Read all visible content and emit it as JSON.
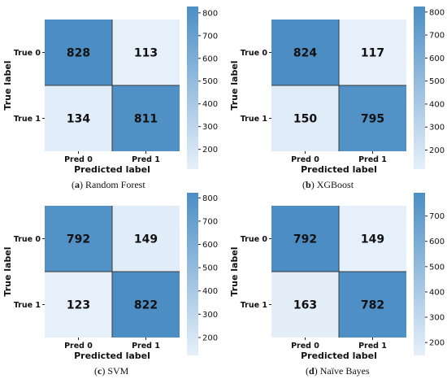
{
  "figure": {
    "panel_captions": [
      {
        "letter": "a",
        "text": "Random Forest"
      },
      {
        "letter": "b",
        "text": "XGBoost"
      },
      {
        "letter": "c",
        "text": "SVM"
      },
      {
        "letter": "d",
        "text": "Naïve Bayes"
      }
    ]
  },
  "colors": {
    "low": "#e6f0fa",
    "high": "#4c8ec4",
    "grid_line": "#3a3a3a"
  },
  "chart_data": [
    {
      "type": "heatmap",
      "title": "",
      "xlabel": "Predicted label",
      "ylabel": "True label",
      "x_categories": [
        "Pred 0",
        "Pred 1"
      ],
      "y_categories": [
        "True 0",
        "True 1"
      ],
      "values": [
        [
          828,
          113
        ],
        [
          134,
          811
        ]
      ],
      "colorbar": {
        "min": 113,
        "max": 828,
        "ticks": [
          200,
          300,
          400,
          500,
          600,
          700,
          800
        ]
      }
    },
    {
      "type": "heatmap",
      "title": "",
      "xlabel": "Predicted label",
      "ylabel": "True label",
      "x_categories": [
        "Pred 0",
        "Pred 1"
      ],
      "y_categories": [
        "True 0",
        "True 1"
      ],
      "values": [
        [
          824,
          117
        ],
        [
          150,
          795
        ]
      ],
      "colorbar": {
        "min": 117,
        "max": 824,
        "ticks": [
          200,
          300,
          400,
          500,
          600,
          700,
          800
        ]
      }
    },
    {
      "type": "heatmap",
      "title": "",
      "xlabel": "Predicted label",
      "ylabel": "True label",
      "x_categories": [
        "Pred 0",
        "Pred 1"
      ],
      "y_categories": [
        "True 0",
        "True 1"
      ],
      "values": [
        [
          792,
          149
        ],
        [
          123,
          822
        ]
      ],
      "colorbar": {
        "min": 123,
        "max": 822,
        "ticks": [
          200,
          300,
          400,
          500,
          600,
          700,
          800
        ]
      }
    },
    {
      "type": "heatmap",
      "title": "",
      "xlabel": "Predicted label",
      "ylabel": "True label",
      "x_categories": [
        "Pred 0",
        "Pred 1"
      ],
      "y_categories": [
        "True 0",
        "True 1"
      ],
      "values": [
        [
          792,
          149
        ],
        [
          163,
          782
        ]
      ],
      "colorbar": {
        "min": 149,
        "max": 792,
        "ticks": [
          200,
          300,
          400,
          500,
          600,
          700
        ]
      }
    }
  ]
}
